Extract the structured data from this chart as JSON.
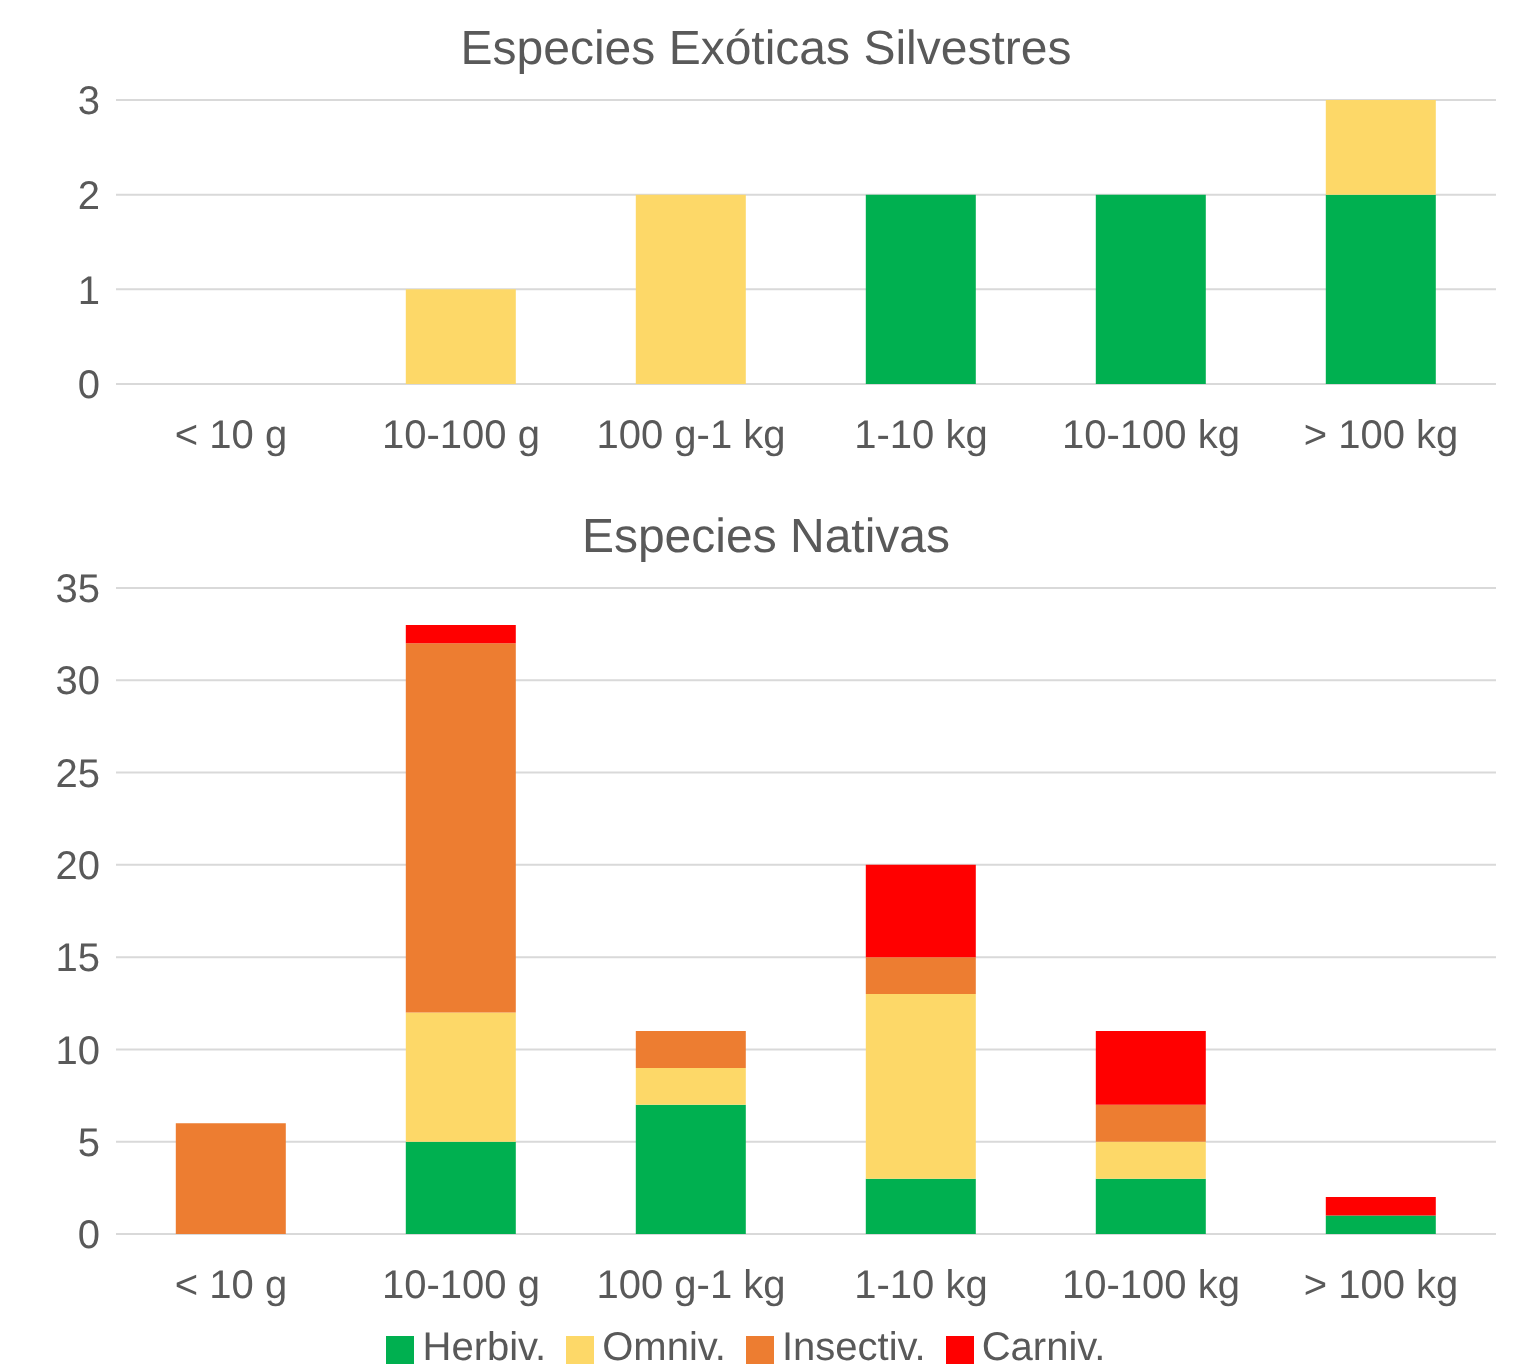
{
  "chart_data": [
    {
      "type": "bar",
      "title": "Especies Exóticas Silvestres",
      "categories": [
        "< 10 g",
        "10-100 g",
        "100 g-1 kg",
        "1-10 kg",
        "10-100 kg",
        "> 100 kg"
      ],
      "stacked": true,
      "ylim": [
        0,
        3
      ],
      "yticks": [
        0,
        1,
        2,
        3
      ],
      "grid": "y",
      "legend": false,
      "series": [
        {
          "color": "#00b050",
          "values": [
            0,
            0,
            0,
            2,
            2,
            2
          ]
        },
        {
          "color": "#fdd868",
          "values": [
            0,
            1,
            2,
            0,
            0,
            1
          ]
        }
      ]
    },
    {
      "type": "bar",
      "title": "Especies Nativas",
      "categories": [
        "< 10 g",
        "10-100 g",
        "100 g-1 kg",
        "1-10 kg",
        "10-100 kg",
        "> 100 kg"
      ],
      "stacked": true,
      "ylim": [
        0,
        35
      ],
      "yticks": [
        0,
        5,
        10,
        15,
        20,
        25,
        30,
        35
      ],
      "grid": "y",
      "legend": "bottom",
      "series": [
        {
          "name": "Herbiv.",
          "color": "#00b050",
          "values": [
            0,
            5,
            7,
            3,
            3,
            1
          ]
        },
        {
          "name": "Omniv.",
          "color": "#fdd868",
          "values": [
            0,
            7,
            2,
            10,
            2,
            0
          ]
        },
        {
          "name": "Insectiv.",
          "color": "#ed7d31",
          "values": [
            6,
            20,
            2,
            2,
            2,
            0
          ]
        },
        {
          "name": "Carniv.",
          "color": "#ff0000",
          "values": [
            0,
            1,
            0,
            5,
            4,
            1
          ]
        }
      ]
    }
  ]
}
